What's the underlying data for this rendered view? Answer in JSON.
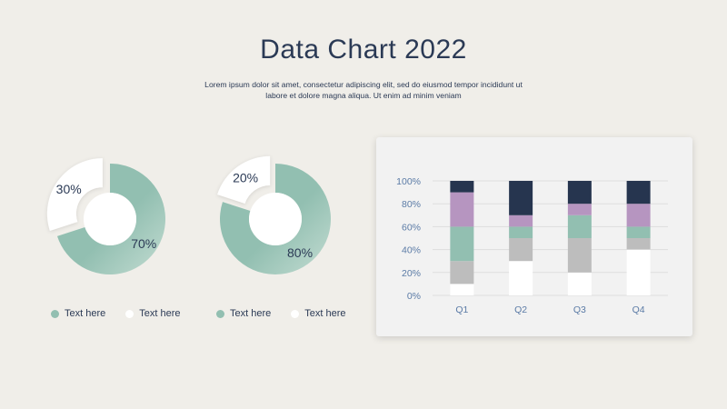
{
  "header": {
    "title": "Data Chart 2022",
    "subtitle": "Lorem ipsum dolor sit amet, consectetur adipiscing elit, sed do eiusmod tempor incididunt ut labore et dolore magna aliqua. Ut enim ad minim veniam"
  },
  "colors": {
    "background": "#f0eee9",
    "teal": "#92bfb1",
    "teal_light": "#c3dcd2",
    "white": "#ffffff",
    "gray": "#bdbdbd",
    "purple": "#b695c0",
    "navy": "#26354f",
    "text": "#2b3a55",
    "axis_text": "#5b7ba6"
  },
  "legends": [
    {
      "items": [
        {
          "label": "Text here",
          "color": "#92bfb1"
        },
        {
          "label": "Text here",
          "color": "#ffffff"
        }
      ]
    },
    {
      "items": [
        {
          "label": "Text here",
          "color": "#92bfb1"
        },
        {
          "label": "Text here",
          "color": "#ffffff"
        }
      ]
    }
  ],
  "chart_data": [
    {
      "type": "pie",
      "donut": true,
      "slices": [
        {
          "label": "70%",
          "value": 70,
          "color": "#92bfb1"
        },
        {
          "label": "30%",
          "value": 30,
          "color": "#ffffff",
          "exploded": true
        }
      ]
    },
    {
      "type": "pie",
      "donut": true,
      "slices": [
        {
          "label": "80%",
          "value": 80,
          "color": "#92bfb1"
        },
        {
          "label": "20%",
          "value": 20,
          "color": "#ffffff",
          "exploded": true
        }
      ]
    },
    {
      "type": "bar",
      "stacked": true,
      "categories": [
        "Q1",
        "Q2",
        "Q3",
        "Q4"
      ],
      "y_ticks": [
        "0%",
        "20%",
        "40%",
        "60%",
        "80%",
        "100%"
      ],
      "ylim": [
        0,
        100
      ],
      "grid": true,
      "series": [
        {
          "color": "#ffffff",
          "values": [
            10,
            30,
            20,
            40
          ]
        },
        {
          "color": "#bdbdbd",
          "values": [
            20,
            20,
            30,
            10
          ]
        },
        {
          "color": "#92bfb1",
          "values": [
            30,
            10,
            20,
            10
          ]
        },
        {
          "color": "#b695c0",
          "values": [
            30,
            10,
            10,
            20
          ]
        },
        {
          "color": "#26354f",
          "values": [
            10,
            30,
            20,
            20
          ]
        }
      ]
    }
  ]
}
